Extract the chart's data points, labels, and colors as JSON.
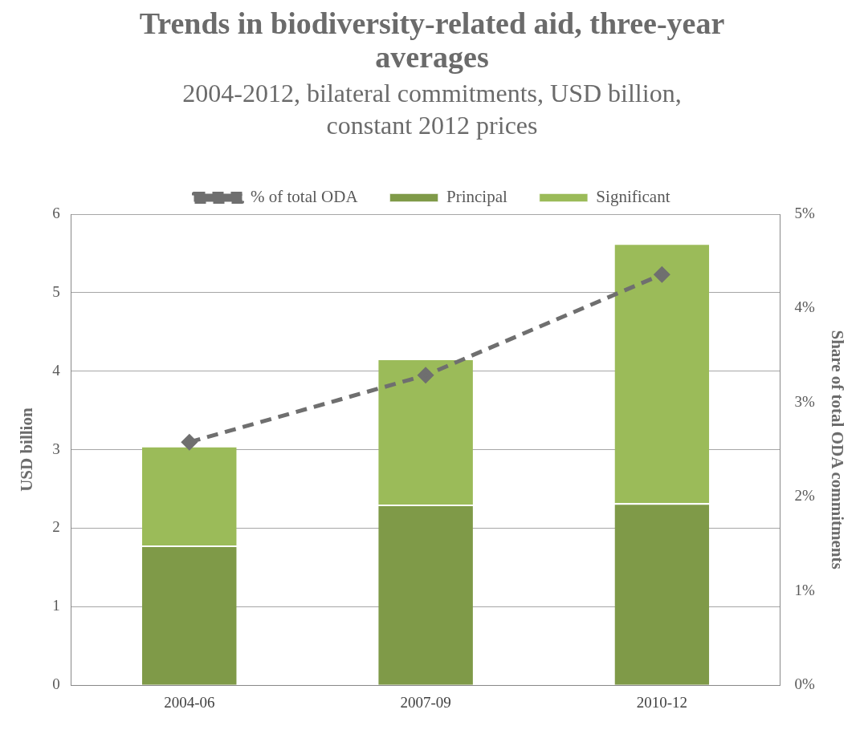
{
  "chart_data": {
    "type": "bar",
    "title": "Trends in biodiversity-related aid, three-year averages",
    "subtitle": "2004-2012, bilateral commitments, USD billion, constant 2012 prices",
    "ylabel": "USD billion",
    "y2label": "Share of total ODA commitments",
    "categories": [
      "2004-06",
      "2007-09",
      "2010-12"
    ],
    "stacked": true,
    "series": [
      {
        "name": "Principal",
        "color": "#7f9a48",
        "values": [
          1.78,
          2.3,
          2.32
        ]
      },
      {
        "name": "Significant",
        "color": "#9bbb59",
        "values": [
          1.27,
          1.86,
          3.31
        ]
      },
      {
        "name": "% of total ODA",
        "type": "line",
        "axis": "y2",
        "color": "#6f6f6f",
        "values": [
          2.58,
          3.29,
          4.36
        ]
      }
    ],
    "ylim": [
      0,
      6
    ],
    "yticks": [
      0,
      1,
      2,
      3,
      4,
      5,
      6
    ],
    "y2lim": [
      0,
      5
    ],
    "y2ticks": [
      {
        "value": 0,
        "label": "0%"
      },
      {
        "value": 1,
        "label": "1%"
      },
      {
        "value": 2,
        "label": "2%"
      },
      {
        "value": 3,
        "label": "3%"
      },
      {
        "value": 4,
        "label": "4%"
      },
      {
        "value": 5,
        "label": "5%"
      }
    ],
    "grid": "y",
    "legend": "top",
    "line_style": "dashed",
    "marker": "diamond"
  }
}
